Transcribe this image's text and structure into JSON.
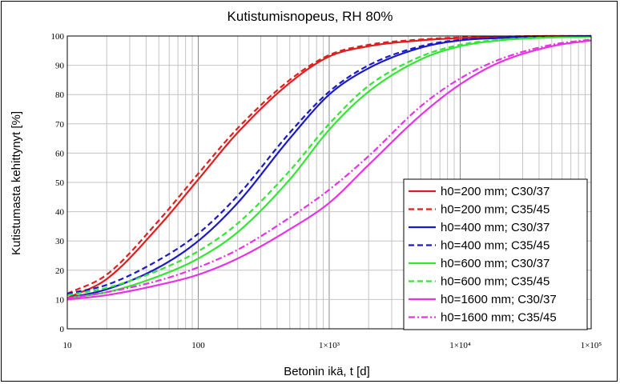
{
  "chart_data": {
    "type": "line",
    "title": "Kutistumisnopeus, RH 80%",
    "xlabel": "Betonin ikä, t [d]",
    "ylabel": "Kutistumasta kehittynyt [%]",
    "x_scale": "log",
    "xlim": [
      10,
      100000
    ],
    "ylim": [
      0,
      100
    ],
    "x_ticks": [
      {
        "value": 10,
        "label": "10"
      },
      {
        "value": 100,
        "label": "100"
      },
      {
        "value": 1000,
        "label": "1×10³"
      },
      {
        "value": 10000,
        "label": "1×10⁴"
      },
      {
        "value": 100000,
        "label": "1×10⁵"
      }
    ],
    "y_ticks": [
      0,
      10,
      20,
      30,
      40,
      50,
      60,
      70,
      80,
      90,
      100
    ],
    "grid": true,
    "legend_position": "lower-right",
    "x": [
      10,
      20,
      50,
      100,
      200,
      500,
      1000,
      2000,
      5000,
      10000,
      20000,
      50000,
      100000
    ],
    "series": [
      {
        "name": "h0=200 mm; C30/37",
        "color": "#e11e1e",
        "dash": "solid",
        "values": [
          10.5,
          17,
          35,
          51,
          67,
          84,
          93,
          96.5,
          98.5,
          99.3,
          99.7,
          100,
          100
        ]
      },
      {
        "name": "h0=200 mm; C35/45",
        "color": "#e11e1e",
        "dash": "dashed",
        "values": [
          12,
          18.5,
          37,
          53,
          68.5,
          85,
          93.5,
          97,
          98.8,
          99.5,
          99.8,
          100,
          100
        ]
      },
      {
        "name": "h0=400 mm; C30/37",
        "color": "#1a1ac8",
        "dash": "solid",
        "values": [
          10.5,
          13.5,
          21,
          30,
          43,
          65,
          80,
          89,
          96,
          98.5,
          99.3,
          99.8,
          100
        ]
      },
      {
        "name": "h0=400 mm; C35/45",
        "color": "#1a1ac8",
        "dash": "dashed",
        "values": [
          12,
          15,
          23.5,
          32.5,
          45.5,
          67,
          81,
          90,
          96.5,
          98.7,
          99.4,
          99.8,
          100
        ]
      },
      {
        "name": "h0=600 mm; C30/37",
        "color": "#33e633",
        "dash": "solid",
        "values": [
          10.5,
          12.5,
          18,
          24,
          33,
          51,
          68,
          81,
          92,
          96.5,
          98.5,
          99.5,
          99.8
        ]
      },
      {
        "name": "h0=600 mm; C35/45",
        "color": "#33e633",
        "dash": "dashed",
        "values": [
          11.5,
          14,
          20,
          26.5,
          36,
          54,
          70,
          83,
          93,
          97,
          98.7,
          99.6,
          99.8
        ]
      },
      {
        "name": "h0=1600 mm; C30/37",
        "color": "#e633e6",
        "dash": "solid",
        "values": [
          10,
          11.5,
          15,
          18.5,
          24,
          34,
          43,
          56,
          73,
          83.5,
          91,
          96.5,
          98.5
        ]
      },
      {
        "name": "h0=1600 mm; C35/45",
        "color": "#e633e6",
        "dash": "dashdot",
        "values": [
          10.5,
          12.5,
          16.5,
          21,
          27,
          38,
          47.5,
          59,
          76,
          85.5,
          92,
          97,
          98.8
        ]
      }
    ]
  }
}
